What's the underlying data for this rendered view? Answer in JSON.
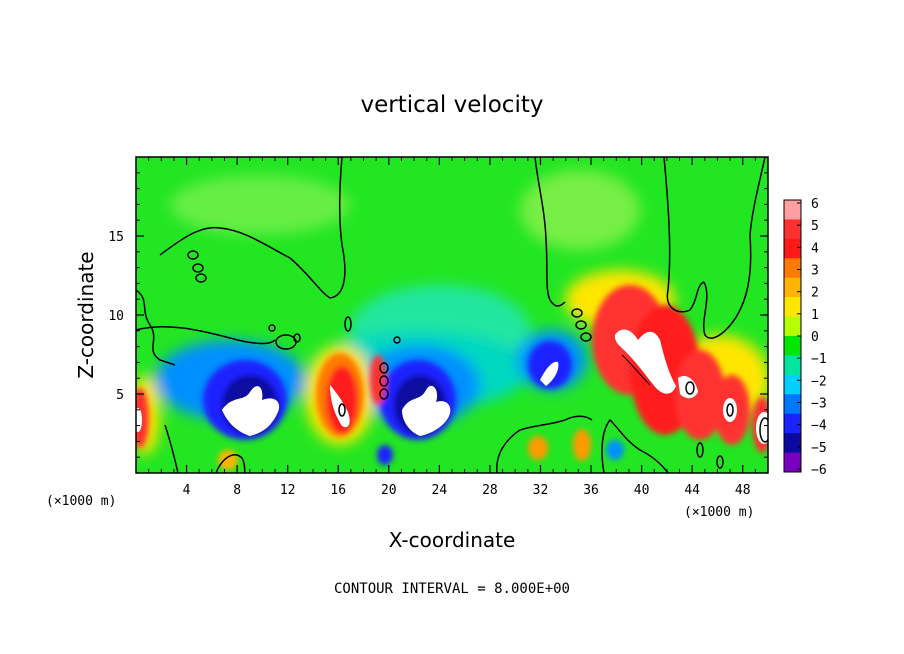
{
  "chart_data": {
    "type": "heatmap",
    "title": "vertical velocity",
    "xlabel": "X-coordinate",
    "ylabel": "Z-coordinate",
    "x_unit_left": "(×1000 m)",
    "x_unit_right": "(×1000 m)",
    "footer": "CONTOUR INTERVAL = 8.000E+00",
    "xlim": [
      0,
      50
    ],
    "ylim": [
      0,
      20
    ],
    "x_ticks": [
      "4",
      "8",
      "12",
      "16",
      "20",
      "24",
      "28",
      "32",
      "36",
      "40",
      "44",
      "48"
    ],
    "y_ticks": [
      "5",
      "10",
      "15"
    ],
    "colorbar": {
      "min": -6,
      "max": 6,
      "labels": [
        "6",
        "5",
        "4",
        "3",
        "2",
        "1",
        "0",
        "−1",
        "−2",
        "−3",
        "−4",
        "−5",
        "−6"
      ],
      "colors": [
        "#ff9f9f",
        "#ff3030",
        "#ff1a1a",
        "#ff7a00",
        "#ffb400",
        "#ffe600",
        "#b4ff00",
        "#00e600",
        "#00e6a0",
        "#00d0ff",
        "#0077ff",
        "#1a22ff",
        "#0a0aa0",
        "#7a00c0"
      ]
    },
    "features": [
      {
        "x": 10.5,
        "z": 4.6,
        "value": -6,
        "shape": "updraft-pair"
      },
      {
        "x": 17.0,
        "z": 4.4,
        "value": 6
      },
      {
        "x": 22.5,
        "z": 4.6,
        "value": -6,
        "shape": "updraft-pair"
      },
      {
        "x": 33.0,
        "z": 6.5,
        "value": -5
      },
      {
        "x": 40.5,
        "z": 7.0,
        "value": 6
      },
      {
        "x": 43.5,
        "z": 5.5,
        "value": 5
      },
      {
        "x": 46.5,
        "z": 4.2,
        "value": 5
      },
      {
        "x": 49.5,
        "z": 3.0,
        "value": 6
      },
      {
        "x": 0.5,
        "z": 3.0,
        "value": 5
      },
      {
        "x": 31.5,
        "z": 1.5,
        "value": 3
      },
      {
        "x": 35.0,
        "z": 2.0,
        "value": 3
      }
    ]
  }
}
